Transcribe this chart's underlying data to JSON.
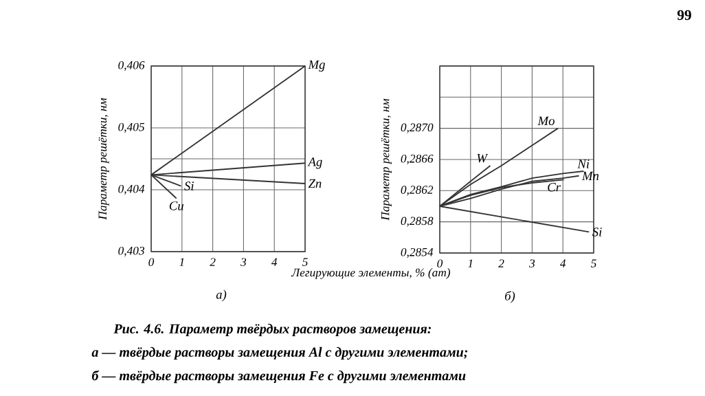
{
  "chart_data": [
    {
      "type": "line",
      "title": "а)",
      "xlabel": "Легирующие элементы, % (ат)",
      "ylabel": "Параметр решётки, нм",
      "xlim": [
        0,
        5
      ],
      "xticks": [
        0,
        1,
        2,
        3,
        4,
        5
      ],
      "ylim": [
        0.403,
        0.406
      ],
      "yticks": [
        {
          "value": 0.403,
          "label": "0,403"
        },
        {
          "value": 0.404,
          "label": "0,404"
        },
        {
          "value": 0.4045,
          "label": null
        },
        {
          "value": 0.405,
          "label": "0,405"
        },
        {
          "value": 0.406,
          "label": "0,406"
        }
      ],
      "grid": true,
      "series": [
        {
          "name": "Mg",
          "color": "#333333",
          "x": [
            0,
            5
          ],
          "values": [
            0.40424,
            0.406
          ]
        },
        {
          "name": "Ag",
          "color": "#333333",
          "x": [
            0,
            5
          ],
          "values": [
            0.40424,
            0.40443
          ]
        },
        {
          "name": "Zn",
          "color": "#333333",
          "x": [
            0,
            5
          ],
          "values": [
            0.40424,
            0.4041
          ]
        },
        {
          "name": "Si",
          "color": "#333333",
          "x": [
            0,
            0.97
          ],
          "values": [
            0.40424,
            0.40406
          ]
        },
        {
          "name": "Cu",
          "color": "#333333",
          "x": [
            0,
            0.82
          ],
          "values": [
            0.40424,
            0.40386
          ]
        }
      ],
      "annotations": [
        "Рис. 4.6. Параметр твёрдых растворов замещения:",
        "а — твёрдые растворы замещения Al с другими элементами;",
        "б — твёрдые растворы замещения Fe с другими элементами"
      ]
    },
    {
      "type": "line",
      "title": "б)",
      "ylabel": "Параметр решётки, нм",
      "xlim": [
        0,
        5
      ],
      "xticks": [
        0,
        1,
        2,
        3,
        4,
        5
      ],
      "ylim": [
        0.2854,
        0.2878
      ],
      "yticks": [
        {
          "value": 0.2854,
          "label": "0,2854"
        },
        {
          "value": 0.2858,
          "label": "0,2858"
        },
        {
          "value": 0.2862,
          "label": "0,2862"
        },
        {
          "value": 0.2866,
          "label": "0,2866"
        },
        {
          "value": 0.287,
          "label": "0,2870"
        },
        {
          "value": 0.2874,
          "label": null
        },
        {
          "value": 0.2878,
          "label": null
        }
      ],
      "grid": true,
      "series": [
        {
          "name": "Mo",
          "color": "#333333",
          "x": [
            0,
            1,
            2,
            3,
            3.84
          ],
          "values": [
            0.286,
            0.28628,
            0.28652,
            0.28678,
            0.287
          ]
        },
        {
          "name": "W",
          "color": "#333333",
          "x": [
            0,
            1,
            1.64
          ],
          "values": [
            0.286,
            0.28632,
            0.28652
          ]
        },
        {
          "name": "Ni",
          "color": "#333333",
          "x": [
            0,
            1,
            2,
            3,
            4,
            4.67
          ],
          "values": [
            0.286,
            0.28615,
            0.28625,
            0.28636,
            0.28642,
            0.28645
          ]
        },
        {
          "name": "Mn",
          "color": "#333333",
          "x": [
            0,
            1,
            2,
            3,
            4,
            4.52
          ],
          "values": [
            0.286,
            0.2861,
            0.28622,
            0.28632,
            0.28636,
            0.28639
          ]
        },
        {
          "name": "Cr",
          "color": "#333333",
          "x": [
            0,
            1,
            2,
            3,
            4.03
          ],
          "values": [
            0.286,
            0.28614,
            0.28624,
            0.2863,
            0.28634
          ]
        },
        {
          "name": "Si",
          "color": "#333333",
          "x": [
            0,
            4.85
          ],
          "values": [
            0.286,
            0.28567
          ]
        }
      ],
      "annotations": [
        "99"
      ]
    }
  ]
}
